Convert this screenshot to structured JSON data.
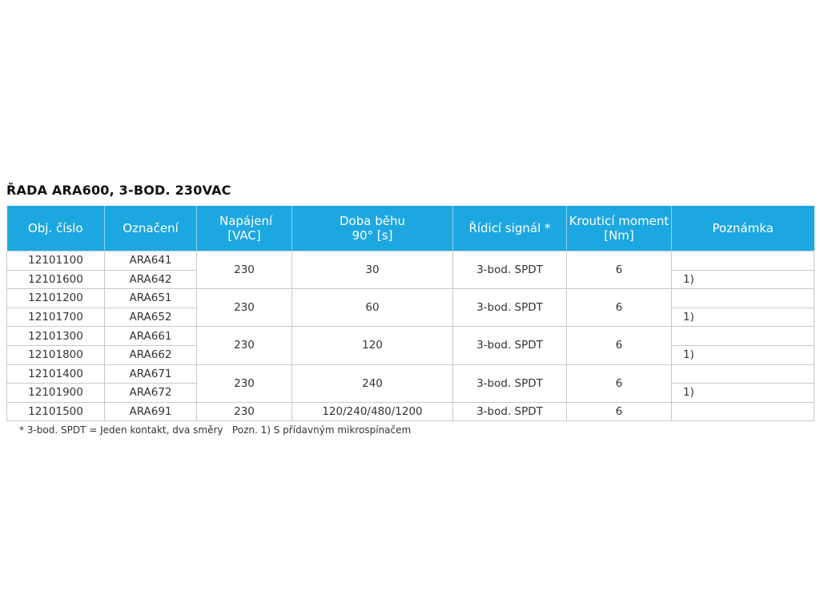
{
  "title": "ŘADA ARA600, 3-BOD. 230VAC",
  "header_color": "#1da7e0",
  "columns": [
    "Obj. číslo",
    "Označení",
    "Napájení [VAC]",
    "Doba běhu 90° [s]",
    "Řídicí signál *",
    "Krouticí moment [Nm]",
    "Poznámka"
  ],
  "groups": [
    {
      "voltage": "230",
      "runtime": "30",
      "signal": "3-bod. SPDT",
      "torque": "6",
      "rows": [
        {
          "code": "12101100",
          "name": "ARA641",
          "note": ""
        },
        {
          "code": "12101600",
          "name": "ARA642",
          "note": "1)"
        }
      ]
    },
    {
      "voltage": "230",
      "runtime": "60",
      "signal": "3-bod. SPDT",
      "torque": "6",
      "rows": [
        {
          "code": "12101200",
          "name": "ARA651",
          "note": ""
        },
        {
          "code": "12101700",
          "name": "ARA652",
          "note": "1)"
        }
      ]
    },
    {
      "voltage": "230",
      "runtime": "120",
      "signal": "3-bod. SPDT",
      "torque": "6",
      "rows": [
        {
          "code": "12101300",
          "name": "ARA661",
          "note": ""
        },
        {
          "code": "12101800",
          "name": "ARA662",
          "note": "1)"
        }
      ]
    },
    {
      "voltage": "230",
      "runtime": "240",
      "signal": "3-bod. SPDT",
      "torque": "6",
      "rows": [
        {
          "code": "12101400",
          "name": "ARA671",
          "note": ""
        },
        {
          "code": "12101900",
          "name": "ARA672",
          "note": "1)"
        }
      ]
    }
  ],
  "last_row": {
    "code": "12101500",
    "name": "ARA691",
    "voltage": "230",
    "runtime": "120/240/480/1200",
    "signal": "3-bod. SPDT",
    "torque": "6",
    "note": ""
  },
  "footnote": "* 3-bod. SPDT = Jeden kontakt, dva směry   Pozn. 1) S přídavným mikrospínačem"
}
